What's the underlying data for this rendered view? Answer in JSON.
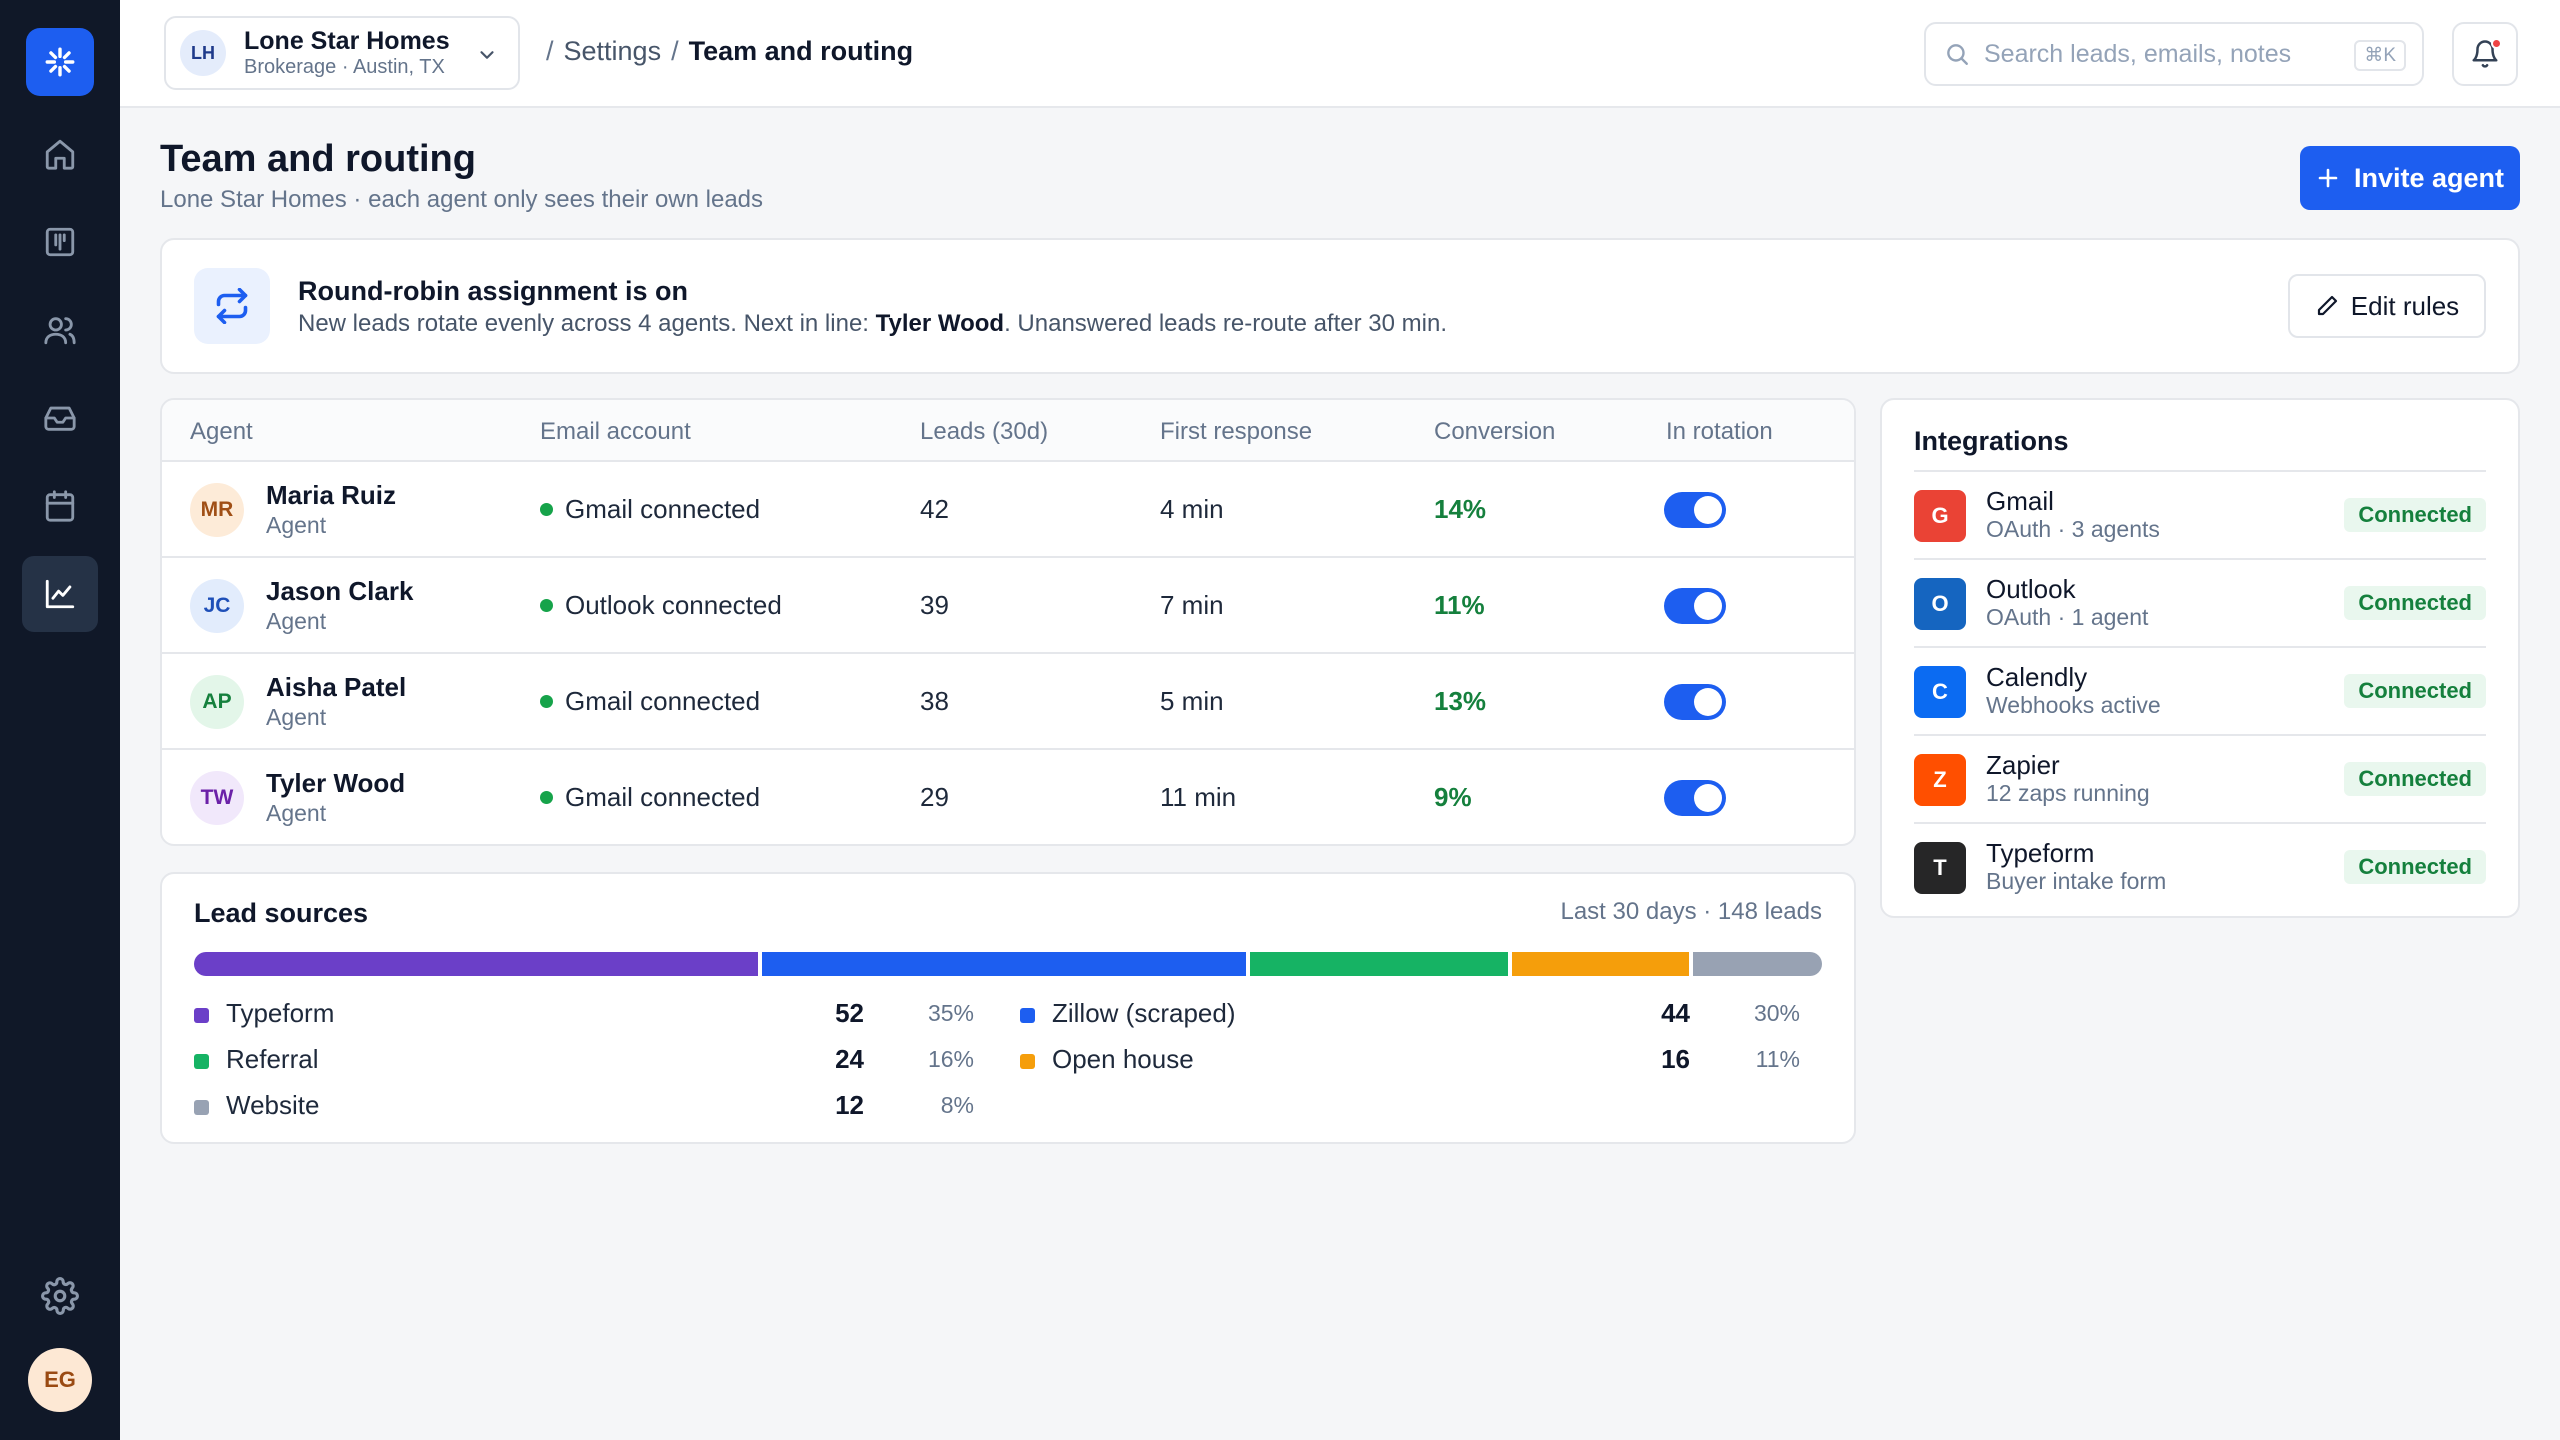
{
  "org": {
    "initials": "LH",
    "name": "Lone Star Homes",
    "subtitle": "Brokerage · Austin, TX"
  },
  "breadcrumb": {
    "separator": "/",
    "parent": "Settings",
    "current": "Team and routing"
  },
  "search": {
    "placeholder": "Search leads, emails, notes",
    "shortcut": "⌘K"
  },
  "user": {
    "initials": "EG"
  },
  "page": {
    "title": "Team and routing",
    "subtitle": "Lone Star Homes · each agent only sees their own leads",
    "invite_label": "Invite agent"
  },
  "banner": {
    "title": "Round-robin assignment is on",
    "desc_prefix": "New leads rotate evenly across 4 agents. Next in line: ",
    "next_agent": "Tyler Wood",
    "desc_suffix": ". Unanswered leads re-route after 30 min.",
    "edit_label": "Edit rules"
  },
  "table": {
    "headers": {
      "agent": "Agent",
      "email": "Email account",
      "leads": "Leads (30d)",
      "first_response": "First response",
      "conversion": "Conversion",
      "rotation": "In rotation"
    },
    "rows": [
      {
        "initials": "MR",
        "name": "Maria Ruiz",
        "role": "Agent",
        "email": "Gmail connected",
        "leads": "42",
        "first_response": "4 min",
        "conversion": "14%",
        "in_rotation": true,
        "avatar_bg": "#fdebd8",
        "avatar_fg": "#a04f16"
      },
      {
        "initials": "JC",
        "name": "Jason Clark",
        "role": "Agent",
        "email": "Outlook connected",
        "leads": "39",
        "first_response": "7 min",
        "conversion": "11%",
        "in_rotation": true,
        "avatar_bg": "#e2ecfc",
        "avatar_fg": "#1e4fb8"
      },
      {
        "initials": "AP",
        "name": "Aisha Patel",
        "role": "Agent",
        "email": "Gmail connected",
        "leads": "38",
        "first_response": "5 min",
        "conversion": "13%",
        "in_rotation": true,
        "avatar_bg": "#e3f6e9",
        "avatar_fg": "#15803d"
      },
      {
        "initials": "TW",
        "name": "Tyler Wood",
        "role": "Agent",
        "email": "Gmail connected",
        "leads": "29",
        "first_response": "11 min",
        "conversion": "9%",
        "in_rotation": true,
        "avatar_bg": "#f1e8fb",
        "avatar_fg": "#6b21a8"
      }
    ]
  },
  "lead_sources": {
    "title": "Lead sources",
    "meta": "Last 30 days · 148 leads",
    "items": [
      {
        "name": "Typeform",
        "count": "52",
        "pct": "35%",
        "share": 35,
        "color": "#6b3fc8"
      },
      {
        "name": "Zillow (scraped)",
        "count": "44",
        "pct": "30%",
        "share": 30,
        "color": "#1d5ef0"
      },
      {
        "name": "Referral",
        "count": "24",
        "pct": "16%",
        "share": 16,
        "color": "#16b364"
      },
      {
        "name": "Open house",
        "count": "16",
        "pct": "11%",
        "share": 11,
        "color": "#f59e0b"
      },
      {
        "name": "Website",
        "count": "12",
        "pct": "8%",
        "share": 8,
        "color": "#98a2b3"
      }
    ]
  },
  "integrations": {
    "title": "Integrations",
    "items": [
      {
        "letter": "G",
        "name": "Gmail",
        "sub": "OAuth · 3 agents",
        "status": "Connected",
        "color": "#ea4335"
      },
      {
        "letter": "O",
        "name": "Outlook",
        "sub": "OAuth · 1 agent",
        "status": "Connected",
        "color": "#1565c0"
      },
      {
        "letter": "C",
        "name": "Calendly",
        "sub": "Webhooks active",
        "status": "Connected",
        "color": "#0b6bf2"
      },
      {
        "letter": "Z",
        "name": "Zapier",
        "sub": "12 zaps running",
        "status": "Connected",
        "color": "#ff4f00"
      },
      {
        "letter": "T",
        "name": "Typeform",
        "sub": "Buyer intake form",
        "status": "Connected",
        "color": "#262627"
      }
    ]
  }
}
